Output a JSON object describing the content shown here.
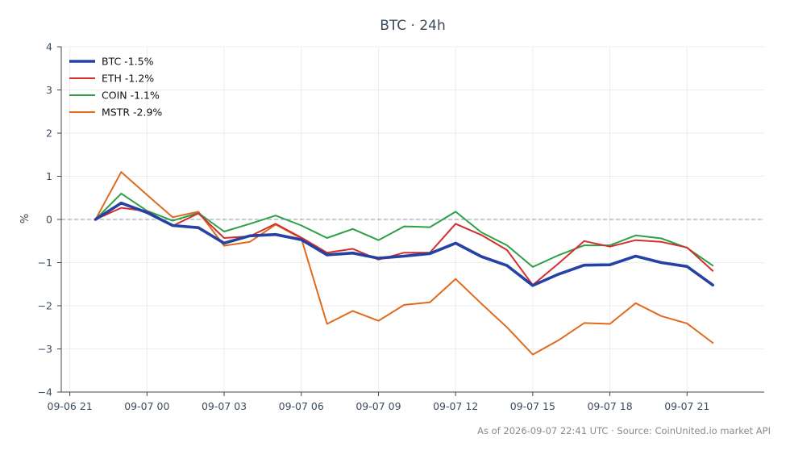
{
  "chart_data": {
    "type": "line",
    "title": "BTC · 24h",
    "xlabel": "",
    "ylabel": "%",
    "ylim": [
      -4,
      4
    ],
    "x_range": [
      "2026-09-06 20:40",
      "2026-09-08 00:00"
    ],
    "x_ticks": [
      "09-06 21",
      "09-07 00",
      "09-07 03",
      "09-07 06",
      "09-07 09",
      "09-07 12",
      "09-07 15",
      "09-07 18",
      "09-07 21"
    ],
    "y_ticks": [
      "−4",
      "−3",
      "−2",
      "−1",
      "0",
      "1",
      "2",
      "3",
      "4"
    ],
    "grid": true,
    "baseline": 0,
    "legend_position": "top-left",
    "x": [
      "2026-09-06 22:00",
      "2026-09-06 23:00",
      "2026-09-07 00:00",
      "2026-09-07 01:00",
      "2026-09-07 02:00",
      "2026-09-07 03:00",
      "2026-09-07 04:00",
      "2026-09-07 05:00",
      "2026-09-07 06:00",
      "2026-09-07 07:00",
      "2026-09-07 08:00",
      "2026-09-07 09:00",
      "2026-09-07 10:00",
      "2026-09-07 11:00",
      "2026-09-07 12:00",
      "2026-09-07 13:00",
      "2026-09-07 14:00",
      "2026-09-07 15:00",
      "2026-09-07 16:00",
      "2026-09-07 17:00",
      "2026-09-07 18:00",
      "2026-09-07 19:00",
      "2026-09-07 20:00",
      "2026-09-07 21:00",
      "2026-09-07 22:00"
    ],
    "series": [
      {
        "name": "BTC -1.5%",
        "color": "#2441a3",
        "values": [
          0,
          0.38,
          0.16,
          -0.14,
          -0.19,
          -0.55,
          -0.38,
          -0.35,
          -0.47,
          -0.82,
          -0.78,
          -0.9,
          -0.85,
          -0.79,
          -0.55,
          -0.86,
          -1.07,
          -1.53,
          -1.27,
          -1.06,
          -1.05,
          -0.85,
          -1.0,
          -1.09,
          -1.52
        ]
      },
      {
        "name": "ETH -1.2%",
        "color": "#d42e2e",
        "values": [
          0,
          0.27,
          0.19,
          -0.15,
          0.14,
          -0.43,
          -0.39,
          -0.1,
          -0.42,
          -0.77,
          -0.68,
          -0.93,
          -0.77,
          -0.77,
          -0.1,
          -0.36,
          -0.71,
          -1.52,
          -1.02,
          -0.5,
          -0.63,
          -0.48,
          -0.52,
          -0.65,
          -1.19
        ]
      },
      {
        "name": "COIN -1.1%",
        "color": "#2ca046",
        "values": [
          0,
          0.6,
          0.2,
          -0.03,
          0.15,
          -0.28,
          -0.1,
          0.09,
          -0.14,
          -0.43,
          -0.22,
          -0.48,
          -0.16,
          -0.18,
          0.18,
          -0.3,
          -0.6,
          -1.1,
          -0.83,
          -0.6,
          -0.6,
          -0.37,
          -0.44,
          -0.66,
          -1.07
        ]
      },
      {
        "name": "MSTR -2.9%",
        "color": "#e06a1c",
        "values": [
          0,
          1.1,
          0.57,
          0.05,
          0.18,
          -0.61,
          -0.52,
          -0.12,
          -0.44,
          -2.42,
          -2.12,
          -2.35,
          -1.98,
          -1.92,
          -1.38,
          -1.95,
          -2.5,
          -3.13,
          -2.8,
          -2.4,
          -2.42,
          -1.94,
          -2.24,
          -2.41,
          -2.86
        ]
      }
    ]
  },
  "footer": "As of 2026-09-07 22:41 UTC · Source: CoinUnited.io market API"
}
